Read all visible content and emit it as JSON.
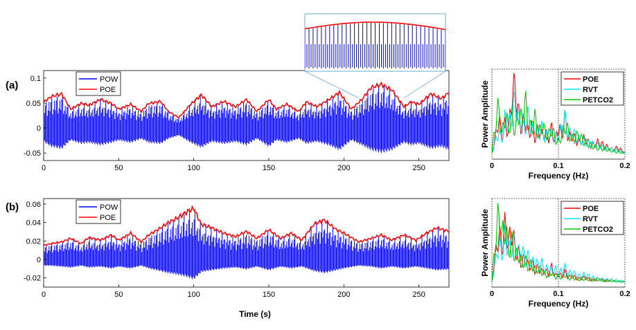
{
  "chart_data": [
    {
      "id": "a-time",
      "panel_label": "(a)",
      "type": "line",
      "xlim": [
        0,
        270
      ],
      "ylim": [
        -0.065,
        0.115
      ],
      "xticks": [
        0,
        50,
        100,
        150,
        200,
        250
      ],
      "xtick_labels": [
        "0",
        "50",
        "100",
        "150",
        "200",
        "250"
      ],
      "yticks": [
        -0.05,
        0,
        0.05,
        0.1
      ],
      "ytick_labels": [
        "-0.05",
        "0",
        "0.05",
        "0.1"
      ],
      "xlabel": "",
      "ylabel": "",
      "legend": [
        "POW",
        "POE"
      ],
      "legend_position": "top-left",
      "series": [
        {
          "name": "POE",
          "color": "#ff0000",
          "x": [
            0,
            5,
            12,
            18,
            25,
            30,
            38,
            45,
            50,
            58,
            65,
            70,
            78,
            83,
            90,
            98,
            105,
            112,
            120,
            128,
            135,
            142,
            150,
            155,
            162,
            170,
            175,
            182,
            190,
            197,
            205,
            212,
            218,
            225,
            232,
            240,
            245,
            250,
            258,
            265,
            270
          ],
          "y": [
            0.055,
            0.066,
            0.072,
            0.04,
            0.052,
            0.048,
            0.06,
            0.052,
            0.04,
            0.05,
            0.035,
            0.052,
            0.056,
            0.035,
            0.022,
            0.05,
            0.07,
            0.045,
            0.056,
            0.045,
            0.06,
            0.035,
            0.06,
            0.04,
            0.05,
            0.035,
            0.055,
            0.045,
            0.06,
            0.075,
            0.04,
            0.06,
            0.085,
            0.092,
            0.08,
            0.045,
            0.055,
            0.05,
            0.072,
            0.062,
            0.075
          ]
        },
        {
          "name": "POW",
          "color": "#0000ff",
          "x": [
            0,
            5,
            12,
            18,
            25,
            30,
            38,
            45,
            50,
            58,
            65,
            70,
            78,
            83,
            90,
            98,
            105,
            112,
            120,
            128,
            135,
            142,
            150,
            155,
            162,
            170,
            175,
            182,
            190,
            197,
            205,
            212,
            218,
            225,
            232,
            240,
            245,
            250,
            258,
            265,
            270
          ],
          "y_lower": [
            -0.028,
            -0.038,
            -0.042,
            -0.025,
            -0.032,
            -0.03,
            -0.035,
            -0.03,
            -0.025,
            -0.03,
            -0.022,
            -0.03,
            -0.032,
            -0.022,
            -0.015,
            -0.03,
            -0.04,
            -0.028,
            -0.032,
            -0.028,
            -0.035,
            -0.022,
            -0.038,
            -0.025,
            -0.03,
            -0.022,
            -0.032,
            -0.028,
            -0.035,
            -0.045,
            -0.025,
            -0.035,
            -0.045,
            -0.05,
            -0.045,
            -0.03,
            -0.035,
            -0.032,
            -0.042,
            -0.038,
            -0.045
          ]
        }
      ],
      "inset": {
        "description": "zoomed region around t=210–240 s",
        "x_range": [
          210,
          240
        ]
      }
    },
    {
      "id": "b-time",
      "panel_label": "(b)",
      "type": "line",
      "xlim": [
        0,
        270
      ],
      "ylim": [
        -0.03,
        0.066
      ],
      "xticks": [
        0,
        50,
        100,
        150,
        200,
        250
      ],
      "xtick_labels": [
        "0",
        "50",
        "100",
        "150",
        "200",
        "250"
      ],
      "yticks": [
        -0.02,
        0,
        0.02,
        0.04,
        0.06
      ],
      "ytick_labels": [
        "-0.02",
        "0",
        "0.02",
        "0.04",
        "0.06"
      ],
      "xlabel": "Time (s)",
      "ylabel": "",
      "legend": [
        "POW",
        "POE"
      ],
      "legend_position": "top-left",
      "series": [
        {
          "name": "POE",
          "color": "#ff0000",
          "x": [
            0,
            5,
            12,
            18,
            25,
            30,
            38,
            45,
            50,
            58,
            65,
            70,
            78,
            83,
            90,
            95,
            100,
            105,
            112,
            120,
            128,
            135,
            142,
            150,
            158,
            165,
            172,
            180,
            187,
            195,
            200,
            210,
            218,
            225,
            232,
            240,
            248,
            255,
            262,
            270
          ],
          "y": [
            0.016,
            0.018,
            0.02,
            0.024,
            0.018,
            0.025,
            0.022,
            0.028,
            0.022,
            0.03,
            0.02,
            0.028,
            0.036,
            0.042,
            0.048,
            0.054,
            0.058,
            0.04,
            0.036,
            0.03,
            0.026,
            0.032,
            0.024,
            0.034,
            0.024,
            0.03,
            0.022,
            0.04,
            0.045,
            0.034,
            0.03,
            0.02,
            0.024,
            0.028,
            0.022,
            0.028,
            0.022,
            0.03,
            0.036,
            0.032
          ]
        },
        {
          "name": "POW",
          "color": "#0000ff",
          "x": [
            0,
            5,
            12,
            18,
            25,
            30,
            38,
            45,
            50,
            58,
            65,
            70,
            78,
            83,
            90,
            95,
            100,
            105,
            112,
            120,
            128,
            135,
            142,
            150,
            158,
            165,
            172,
            180,
            187,
            195,
            200,
            210,
            218,
            225,
            232,
            240,
            248,
            255,
            262,
            270
          ],
          "y_lower": [
            -0.007,
            -0.007,
            -0.008,
            -0.009,
            -0.007,
            -0.009,
            -0.008,
            -0.01,
            -0.008,
            -0.01,
            -0.007,
            -0.01,
            -0.013,
            -0.015,
            -0.017,
            -0.019,
            -0.022,
            -0.014,
            -0.012,
            -0.01,
            -0.009,
            -0.011,
            -0.008,
            -0.012,
            -0.008,
            -0.01,
            -0.008,
            -0.013,
            -0.015,
            -0.012,
            -0.01,
            -0.007,
            -0.008,
            -0.01,
            -0.008,
            -0.01,
            -0.008,
            -0.01,
            -0.012,
            -0.011
          ]
        }
      ]
    },
    {
      "id": "a-freq",
      "type": "line",
      "xlim": [
        0,
        0.2
      ],
      "xticks": [
        0,
        0.1,
        0.2
      ],
      "xtick_labels": [
        "0",
        "0.1",
        "0.2"
      ],
      "xlabel": "Frequency (Hz)",
      "ylabel": "Power Amplitude",
      "legend": [
        "POE",
        "RVT",
        "PETCO2"
      ],
      "legend_position": "top-right",
      "vlines": [
        0.1
      ],
      "series": [
        {
          "name": "POE",
          "color": "#ff0000",
          "x": [
            0,
            0.005,
            0.01,
            0.015,
            0.02,
            0.025,
            0.03,
            0.035,
            0.04,
            0.045,
            0.05,
            0.055,
            0.06,
            0.065,
            0.07,
            0.075,
            0.08,
            0.085,
            0.09,
            0.095,
            0.1,
            0.105,
            0.11,
            0.115,
            0.12,
            0.13,
            0.14,
            0.15,
            0.16,
            0.17,
            0.18,
            0.19,
            0.2
          ],
          "y": [
            0.05,
            0.25,
            0.55,
            0.3,
            0.45,
            0.35,
            0.85,
            1.0,
            0.6,
            0.4,
            0.55,
            0.3,
            0.45,
            0.25,
            0.4,
            0.3,
            0.35,
            0.25,
            0.4,
            0.2,
            0.45,
            0.3,
            0.55,
            0.25,
            0.3,
            0.2,
            0.25,
            0.15,
            0.2,
            0.15,
            0.1,
            0.12,
            0.05
          ]
        },
        {
          "name": "RVT",
          "color": "#00e5ff",
          "x": [
            0,
            0.005,
            0.01,
            0.015,
            0.02,
            0.025,
            0.03,
            0.035,
            0.04,
            0.045,
            0.05,
            0.055,
            0.06,
            0.065,
            0.07,
            0.075,
            0.08,
            0.085,
            0.09,
            0.095,
            0.1,
            0.105,
            0.11,
            0.115,
            0.12,
            0.13,
            0.14,
            0.15,
            0.16,
            0.17,
            0.18,
            0.19,
            0.2
          ],
          "y": [
            0.05,
            0.2,
            0.35,
            0.25,
            0.55,
            0.45,
            0.6,
            0.8,
            0.5,
            0.55,
            0.4,
            0.6,
            0.35,
            0.45,
            0.3,
            0.4,
            0.25,
            0.35,
            0.3,
            0.25,
            0.3,
            0.4,
            0.55,
            0.3,
            0.35,
            0.25,
            0.2,
            0.18,
            0.15,
            0.12,
            0.1,
            0.08,
            0.05
          ]
        },
        {
          "name": "PETCO2",
          "color": "#00cc00",
          "x": [
            0,
            0.005,
            0.01,
            0.015,
            0.02,
            0.025,
            0.03,
            0.035,
            0.04,
            0.045,
            0.05,
            0.055,
            0.06,
            0.065,
            0.07,
            0.075,
            0.08,
            0.085,
            0.09,
            0.095,
            0.1,
            0.105,
            0.11,
            0.115,
            0.12,
            0.13,
            0.14,
            0.15,
            0.16,
            0.17,
            0.18,
            0.19,
            0.2
          ],
          "y": [
            0.05,
            0.45,
            0.7,
            0.3,
            0.6,
            0.4,
            0.55,
            0.35,
            0.65,
            0.5,
            0.8,
            0.45,
            0.4,
            0.55,
            0.3,
            0.45,
            0.35,
            0.3,
            0.4,
            0.25,
            0.2,
            0.3,
            0.45,
            0.35,
            0.25,
            0.3,
            0.2,
            0.15,
            0.12,
            0.1,
            0.08,
            0.06,
            0.05
          ]
        }
      ]
    },
    {
      "id": "b-freq",
      "type": "line",
      "xlim": [
        0,
        0.2
      ],
      "xticks": [
        0,
        0.1,
        0.2
      ],
      "xtick_labels": [
        "0",
        "0.1",
        "0.2"
      ],
      "xlabel": "Frequency (Hz)",
      "ylabel": "Power Amplitude",
      "legend": [
        "POE",
        "RVT",
        "PETCO2"
      ],
      "legend_position": "top-right",
      "vlines": [
        0.1
      ],
      "series": [
        {
          "name": "POE",
          "color": "#ff0000",
          "x": [
            0,
            0.005,
            0.01,
            0.015,
            0.02,
            0.025,
            0.03,
            0.035,
            0.04,
            0.045,
            0.05,
            0.055,
            0.06,
            0.065,
            0.07,
            0.075,
            0.08,
            0.085,
            0.09,
            0.095,
            0.1,
            0.105,
            0.11,
            0.115,
            0.12,
            0.13,
            0.14,
            0.15,
            0.16,
            0.17,
            0.18,
            0.19,
            0.2
          ],
          "y": [
            0.05,
            0.4,
            0.75,
            0.55,
            0.85,
            0.6,
            0.8,
            0.5,
            0.45,
            0.3,
            0.4,
            0.25,
            0.3,
            0.2,
            0.25,
            0.18,
            0.2,
            0.15,
            0.25,
            0.12,
            0.15,
            0.12,
            0.18,
            0.1,
            0.12,
            0.08,
            0.1,
            0.06,
            0.08,
            0.05,
            0.06,
            0.05,
            0.04
          ]
        },
        {
          "name": "RVT",
          "color": "#00e5ff",
          "x": [
            0,
            0.005,
            0.01,
            0.015,
            0.02,
            0.025,
            0.03,
            0.035,
            0.04,
            0.045,
            0.05,
            0.055,
            0.06,
            0.065,
            0.07,
            0.075,
            0.08,
            0.085,
            0.09,
            0.095,
            0.1,
            0.105,
            0.11,
            0.115,
            0.12,
            0.13,
            0.14,
            0.15,
            0.16,
            0.17,
            0.18,
            0.19,
            0.2
          ],
          "y": [
            0.05,
            0.3,
            0.6,
            0.45,
            0.7,
            0.5,
            0.55,
            0.6,
            0.45,
            0.5,
            0.35,
            0.4,
            0.3,
            0.35,
            0.25,
            0.3,
            0.2,
            0.25,
            0.18,
            0.22,
            0.15,
            0.2,
            0.25,
            0.15,
            0.18,
            0.12,
            0.14,
            0.1,
            0.08,
            0.07,
            0.06,
            0.05,
            0.04
          ]
        },
        {
          "name": "PETCO2",
          "color": "#00cc00",
          "x": [
            0,
            0.005,
            0.01,
            0.015,
            0.02,
            0.025,
            0.03,
            0.035,
            0.04,
            0.045,
            0.05,
            0.055,
            0.06,
            0.065,
            0.07,
            0.075,
            0.08,
            0.085,
            0.09,
            0.095,
            0.1,
            0.105,
            0.11,
            0.115,
            0.12,
            0.13,
            0.14,
            0.15,
            0.16,
            0.17,
            0.18,
            0.19,
            0.2
          ],
          "y": [
            0.05,
            0.6,
            1.0,
            0.7,
            0.85,
            0.5,
            0.6,
            0.4,
            0.45,
            0.3,
            0.35,
            0.25,
            0.3,
            0.2,
            0.22,
            0.18,
            0.15,
            0.12,
            0.18,
            0.1,
            0.12,
            0.1,
            0.15,
            0.08,
            0.1,
            0.07,
            0.08,
            0.06,
            0.07,
            0.05,
            0.05,
            0.04,
            0.04
          ]
        }
      ]
    }
  ],
  "inset": {
    "title": ""
  }
}
